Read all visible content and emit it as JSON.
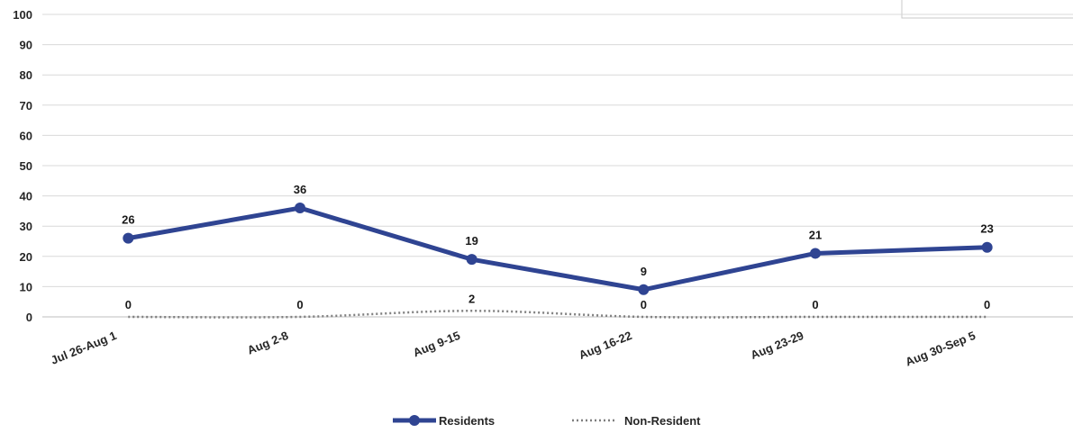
{
  "chart_data": {
    "type": "line",
    "categories": [
      "Jul 26-Aug 1",
      "Aug 2-8",
      "Aug 9-15",
      "Aug 16-22",
      "Aug 23-29",
      "Aug 30-Sep 5"
    ],
    "ylim": [
      0,
      100
    ],
    "yticks": [
      "0",
      "10",
      "20",
      "30",
      "40",
      "50",
      "60",
      "70",
      "80",
      "90",
      "100"
    ],
    "grid": true,
    "legend_position": "bottom",
    "series": [
      {
        "name": "Residents",
        "values": [
          26,
          36,
          19,
          9,
          21,
          23
        ],
        "color": "#2f4492",
        "style": "solid",
        "markers": true
      },
      {
        "name": "Non-Resident",
        "values": [
          0,
          0,
          2,
          0,
          0,
          0
        ],
        "color": "#7f7f7f",
        "style": "dotted",
        "markers": false
      }
    ]
  }
}
